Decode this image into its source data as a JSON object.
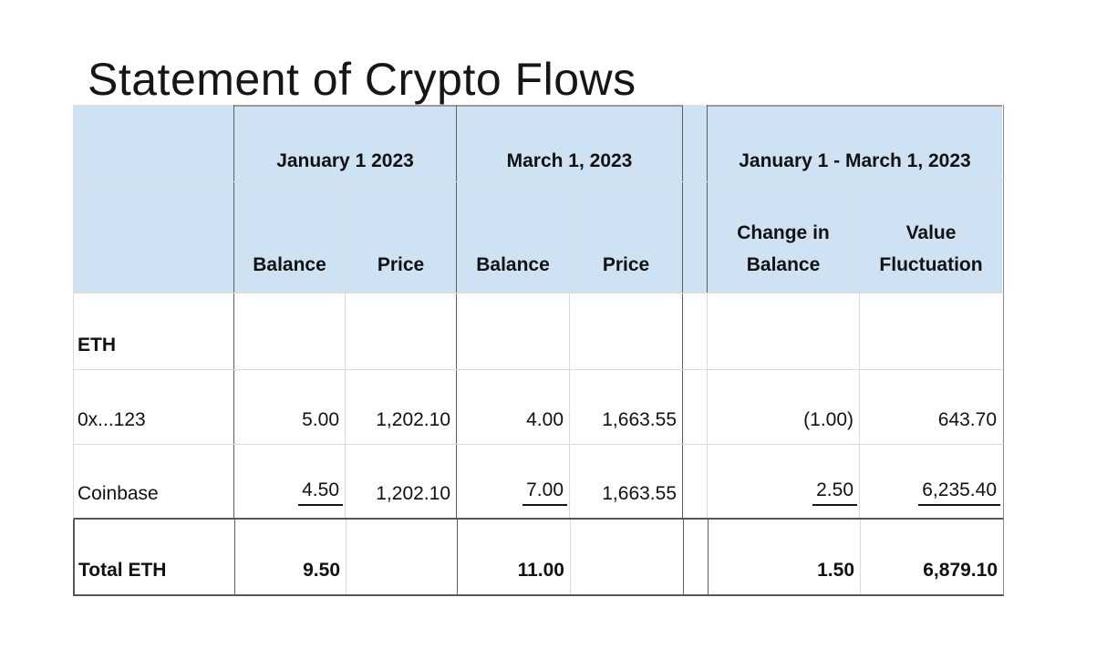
{
  "title": "Statement of Crypto Flows",
  "table": {
    "group_headers": {
      "jan": "January 1 2023",
      "mar": "March 1, 2023",
      "range": "January 1 - March 1, 2023"
    },
    "column_headers": {
      "jan_balance": "Balance",
      "jan_price": "Price",
      "mar_balance": "Balance",
      "mar_price": "Price",
      "change_in_balance": "Change in Balance",
      "value_fluctuation": "Value Fluctuation"
    },
    "rows": [
      {
        "label": "ETH",
        "cells": [
          "",
          "",
          "",
          "",
          "",
          ""
        ]
      },
      {
        "label": "0x...123",
        "cells": [
          "5.00",
          "1,202.10",
          "4.00",
          "1,663.55",
          "(1.00)",
          "643.70"
        ]
      },
      {
        "label": "Coinbase",
        "cells": [
          "4.50",
          "1,202.10",
          "7.00",
          "1,663.55",
          "2.50",
          "6,235.40"
        ]
      },
      {
        "label": "Total ETH",
        "cells": [
          "9.50",
          "",
          "11.00",
          "",
          "1.50",
          "6,879.10"
        ]
      }
    ],
    "colors": {
      "header_fill": "#cfe2f3",
      "grid_line": "#dadada",
      "border_dark": "#565656"
    }
  }
}
